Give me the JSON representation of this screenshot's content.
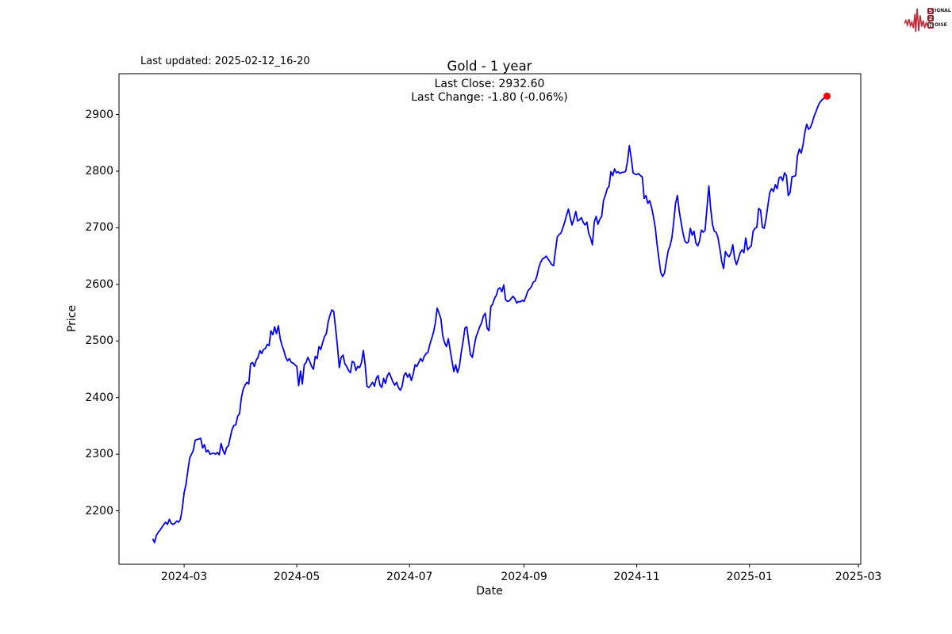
{
  "header": {
    "last_updated": "Last updated: 2025-02-12_16-20",
    "logo": {
      "rows": [
        {
          "boxed": "S",
          "rest": "IGNAL"
        },
        {
          "boxed": "2",
          "rest": ""
        },
        {
          "boxed": "N",
          "rest": "OISE"
        }
      ]
    }
  },
  "chart_data": {
    "type": "line",
    "title": "Gold - 1 year",
    "annotation_line1": "Last Close: 2932.60",
    "annotation_line2": "Last Change: -1.80 (-0.06%)",
    "xlabel": "Date",
    "ylabel": "Price",
    "series_name": "Gold price",
    "line_color": "#0000ff",
    "marker_color": "#ff0000",
    "x_unit": "days since 2024-02-13",
    "xlim_days": [
      -18.25,
      383.25
    ],
    "ylim": [
      2105.6,
      2972.2
    ],
    "grid": false,
    "legend": "none",
    "x_ticks": [
      {
        "day": 17,
        "label": "2024-03"
      },
      {
        "day": 78,
        "label": "2024-05"
      },
      {
        "day": 139,
        "label": "2024-07"
      },
      {
        "day": 201,
        "label": "2024-09"
      },
      {
        "day": 262,
        "label": "2024-11"
      },
      {
        "day": 323,
        "label": "2025-01"
      },
      {
        "day": 382,
        "label": "2025-03"
      }
    ],
    "y_ticks": [
      2200,
      2300,
      2400,
      2500,
      2600,
      2700,
      2800,
      2900
    ],
    "last_close": 2932.6,
    "last_change": -1.8,
    "last_change_pct": -0.06,
    "values": [
      2151,
      2144,
      2157,
      2162,
      2166,
      2171,
      2176,
      2180,
      2176,
      2185,
      2178,
      2176,
      2178,
      2182,
      2180,
      2185,
      2204,
      2232,
      2246,
      2270,
      2293,
      2300,
      2307,
      2325,
      2326,
      2327,
      2328,
      2311,
      2317,
      2304,
      2307,
      2300,
      2301,
      2302,
      2300,
      2303,
      2299,
      2319,
      2307,
      2300,
      2312,
      2315,
      2330,
      2344,
      2351,
      2352,
      2367,
      2372,
      2400,
      2415,
      2422,
      2427,
      2424,
      2460,
      2462,
      2455,
      2466,
      2471,
      2483,
      2478,
      2485,
      2487,
      2494,
      2492,
      2518,
      2511,
      2525,
      2513,
      2527,
      2504,
      2492,
      2483,
      2471,
      2465,
      2469,
      2462,
      2461,
      2458,
      2455,
      2421,
      2447,
      2424,
      2458,
      2462,
      2471,
      2464,
      2455,
      2450,
      2473,
      2469,
      2490,
      2485,
      2497,
      2508,
      2513,
      2534,
      2546,
      2555,
      2552,
      2523,
      2490,
      2453,
      2471,
      2475,
      2460,
      2455,
      2448,
      2444,
      2464,
      2462,
      2448,
      2455,
      2453,
      2462,
      2483,
      2458,
      2420,
      2418,
      2422,
      2427,
      2420,
      2434,
      2439,
      2422,
      2418,
      2434,
      2425,
      2439,
      2444,
      2436,
      2428,
      2422,
      2427,
      2418,
      2413,
      2420,
      2439,
      2444,
      2436,
      2442,
      2430,
      2442,
      2458,
      2455,
      2462,
      2469,
      2464,
      2473,
      2478,
      2480,
      2494,
      2504,
      2516,
      2532,
      2558,
      2549,
      2539,
      2509,
      2497,
      2490,
      2504,
      2485,
      2464,
      2446,
      2458,
      2444,
      2455,
      2480,
      2499,
      2523,
      2525,
      2500,
      2476,
      2471,
      2490,
      2507,
      2516,
      2525,
      2532,
      2544,
      2549,
      2523,
      2518,
      2561,
      2565,
      2575,
      2581,
      2592,
      2594,
      2587,
      2599,
      2573,
      2570,
      2571,
      2575,
      2579,
      2575,
      2567,
      2570,
      2569,
      2572,
      2570,
      2578,
      2588,
      2592,
      2596,
      2604,
      2606,
      2615,
      2630,
      2639,
      2645,
      2647,
      2650,
      2645,
      2640,
      2635,
      2633,
      2660,
      2684,
      2688,
      2691,
      2700,
      2710,
      2722,
      2733,
      2718,
      2705,
      2716,
      2729,
      2712,
      2714,
      2718,
      2710,
      2705,
      2710,
      2690,
      2682,
      2670,
      2710,
      2720,
      2706,
      2715,
      2720,
      2748,
      2757,
      2769,
      2773,
      2799,
      2792,
      2804,
      2797,
      2799,
      2796,
      2798,
      2798,
      2800,
      2818,
      2845,
      2823,
      2797,
      2795,
      2794,
      2796,
      2792,
      2790,
      2752,
      2757,
      2743,
      2748,
      2736,
      2720,
      2701,
      2670,
      2645,
      2621,
      2614,
      2620,
      2640,
      2659,
      2668,
      2682,
      2710,
      2743,
      2757,
      2729,
      2710,
      2691,
      2677,
      2673,
      2675,
      2699,
      2687,
      2694,
      2673,
      2668,
      2677,
      2696,
      2692,
      2696,
      2734,
      2774,
      2734,
      2706,
      2694,
      2692,
      2682,
      2663,
      2640,
      2628,
      2658,
      2652,
      2649,
      2656,
      2670,
      2645,
      2635,
      2645,
      2656,
      2661,
      2656,
      2682,
      2661,
      2665,
      2668,
      2694,
      2699,
      2701,
      2734,
      2731,
      2701,
      2699,
      2717,
      2740,
      2762,
      2769,
      2764,
      2776,
      2769,
      2788,
      2790,
      2783,
      2797,
      2792,
      2757,
      2762,
      2790,
      2791,
      2792,
      2827,
      2839,
      2832,
      2846,
      2869,
      2883,
      2874,
      2877,
      2886,
      2897,
      2905,
      2914,
      2921,
      2925,
      2928,
      2930,
      2932.6
    ]
  }
}
